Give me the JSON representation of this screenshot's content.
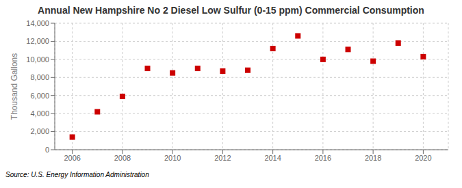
{
  "chart_data": {
    "type": "scatter",
    "title": "Annual New Hampshire No 2 Diesel Low Sulfur (0-15 ppm) Commercial Consumption",
    "ylabel": "Thousand Gallons",
    "annotations": [
      "Source: U.S. Energy Information Administration"
    ],
    "x": [
      2006,
      2007,
      2008,
      2009,
      2010,
      2011,
      2012,
      2013,
      2014,
      2015,
      2016,
      2017,
      2018,
      2019,
      2020
    ],
    "values": [
      1400,
      4200,
      5900,
      9000,
      8500,
      9000,
      8700,
      8800,
      11200,
      12600,
      10000,
      11100,
      9800,
      11800,
      10300
    ],
    "color": "#cc0000",
    "marker": "square",
    "xlim": [
      2005.3,
      2021.0
    ],
    "xticks": [
      2006,
      2008,
      2010,
      2012,
      2014,
      2016,
      2018,
      2020
    ],
    "ylim": [
      0,
      14000
    ],
    "yticks": [
      0,
      {
        "value": 2000,
        "label": "2,000"
      },
      {
        "value": 4000,
        "label": "4,000"
      },
      {
        "value": 6000,
        "label": "6,000"
      },
      {
        "value": 8000,
        "label": "8,000"
      },
      {
        "value": 10000,
        "label": "10,000"
      },
      {
        "value": 12000,
        "label": "12,000"
      },
      {
        "value": 14000,
        "label": "14,000"
      }
    ],
    "grid": true
  }
}
